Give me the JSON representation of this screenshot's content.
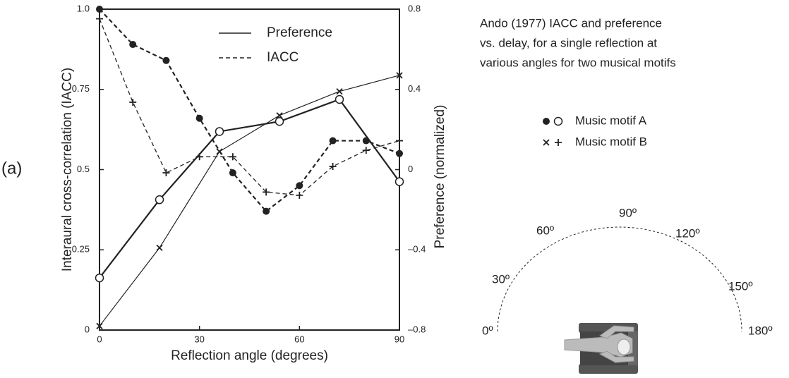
{
  "chart_data": {
    "type": "line",
    "panel_label": "(a)",
    "xlabel": "Reflection angle (degrees)",
    "ylabel": "Interaural cross-correlation  (IACC)",
    "y2label": "Preference (normalized)",
    "xlim": [
      0,
      90
    ],
    "xticks": [
      0,
      30,
      60,
      90
    ],
    "ylim": [
      0,
      1
    ],
    "yticks": [
      0,
      0.25,
      0.5,
      0.75,
      {
        "value": 1,
        "label": "1.0"
      }
    ],
    "y2lim": [
      -0.8,
      0.8
    ],
    "y2ticks": [
      {
        "value": -0.8,
        "label": "–0.8"
      },
      {
        "value": -0.4,
        "label": "–0.4"
      },
      0,
      0.4,
      0.8
    ],
    "legend_lines": [
      {
        "label": "Preference",
        "dash": false
      },
      {
        "label": "IACC",
        "dash": true
      }
    ],
    "legend_markers": [
      {
        "label": "Music motif A",
        "markers": [
          "dot",
          "circle"
        ]
      },
      {
        "label": "Music motif B",
        "markers": [
          "cross",
          "plus"
        ]
      }
    ],
    "series": [
      {
        "axis": "y",
        "marker": "dot",
        "dash": true,
        "width": 2.2,
        "color": "#222",
        "x": [
          0,
          10,
          20,
          30,
          40,
          50,
          60,
          70,
          80,
          90
        ],
        "values": [
          1.0,
          0.89,
          0.84,
          0.66,
          0.49,
          0.37,
          0.45,
          0.59,
          0.59,
          0.55
        ]
      },
      {
        "axis": "y",
        "marker": "plus",
        "dash": true,
        "width": 1.3,
        "color": "#222",
        "x": [
          0,
          10,
          20,
          30,
          40,
          50,
          60,
          70,
          80,
          90
        ],
        "values": [
          0.97,
          0.71,
          0.49,
          0.54,
          0.54,
          0.43,
          0.42,
          0.51,
          0.56,
          0.59
        ]
      },
      {
        "axis": "y2",
        "marker": "circle",
        "dash": false,
        "width": 2.2,
        "color": "#222",
        "x": [
          0,
          18,
          36,
          54,
          72,
          90
        ],
        "values": [
          -0.54,
          -0.15,
          0.19,
          0.24,
          0.35,
          -0.06
        ]
      },
      {
        "axis": "y2",
        "marker": "cross",
        "dash": false,
        "width": 1.2,
        "color": "#222",
        "x": [
          0,
          18,
          36,
          54,
          72,
          90
        ],
        "values": [
          -0.78,
          -0.39,
          0.09,
          0.27,
          0.39,
          0.47
        ]
      }
    ],
    "description": [
      "Ando (1977) IACC and preference",
      "vs. delay, for a single reflection at",
      "various angles for two musical motifs"
    ],
    "angle_labels": [
      "0º",
      "30º",
      "60º",
      "90º",
      "120º",
      "150º",
      "180º"
    ]
  }
}
